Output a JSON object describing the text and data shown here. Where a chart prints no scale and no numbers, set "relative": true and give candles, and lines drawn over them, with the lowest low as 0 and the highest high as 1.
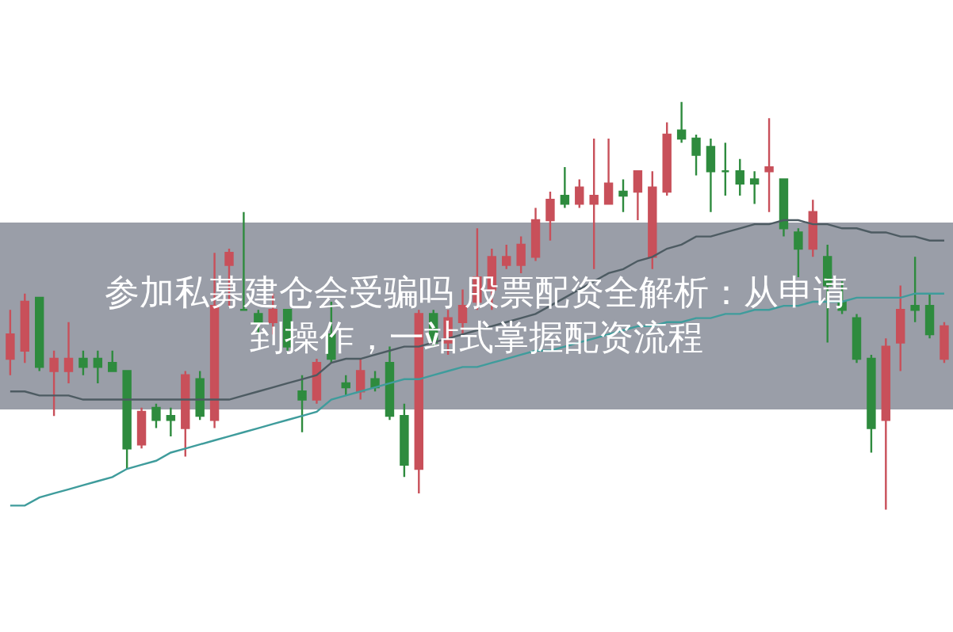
{
  "chart_data": {
    "type": "candlestick",
    "relative": true,
    "title": "参加私募建仓会受骗吗 股票配资全解析：从申请到操作，一站式掌握配资流程",
    "categories": [
      null,
      null,
      null,
      null,
      null,
      null,
      null,
      null,
      null,
      null,
      null,
      null,
      null,
      null,
      null,
      null,
      null,
      null,
      null,
      null,
      null,
      null,
      null,
      null,
      null,
      null,
      null,
      null,
      null,
      null,
      null,
      null,
      null,
      null,
      null,
      null,
      null,
      null,
      null,
      null,
      null,
      null,
      null,
      null,
      null,
      null,
      null,
      null,
      null,
      null,
      null,
      null,
      null,
      null,
      null,
      null,
      null,
      null,
      null,
      null,
      null,
      null,
      null,
      null,
      null
    ],
    "ohlc": [
      [
        0.37,
        0.49,
        0.33,
        0.43
      ],
      [
        0.39,
        0.53,
        0.36,
        0.51
      ],
      [
        0.52,
        0.52,
        0.34,
        0.35
      ],
      [
        0.34,
        0.39,
        0.23,
        0.37
      ],
      [
        0.34,
        0.46,
        0.31,
        0.37
      ],
      [
        0.37,
        0.39,
        0.33,
        0.35
      ],
      [
        0.37,
        0.39,
        0.31,
        0.35
      ],
      [
        0.36,
        0.39,
        0.34,
        0.34
      ],
      [
        0.34,
        0.34,
        0.1,
        0.15
      ],
      [
        0.16,
        0.25,
        0.15,
        0.24
      ],
      [
        0.25,
        0.26,
        0.2,
        0.22
      ],
      [
        0.23,
        0.25,
        0.18,
        0.22
      ],
      [
        0.2,
        0.34,
        0.13,
        0.33
      ],
      [
        0.32,
        0.34,
        0.22,
        0.23
      ],
      [
        0.22,
        0.63,
        0.2,
        0.5
      ],
      [
        0.6,
        0.64,
        0.5,
        0.63
      ],
      [
        0.49,
        0.73,
        0.49,
        0.49
      ],
      [
        0.48,
        0.49,
        0.43,
        0.46
      ],
      [
        0.46,
        0.53,
        0.43,
        0.49
      ],
      [
        0.49,
        0.49,
        0.39,
        0.4
      ],
      [
        0.29,
        0.33,
        0.19,
        0.27
      ],
      [
        0.27,
        0.37,
        0.26,
        0.36
      ],
      [
        0.43,
        0.51,
        0.36,
        0.37
      ],
      [
        0.31,
        0.33,
        0.28,
        0.3
      ],
      [
        0.29,
        0.37,
        0.27,
        0.34
      ],
      [
        0.32,
        0.34,
        0.29,
        0.3
      ],
      [
        0.36,
        0.4,
        0.22,
        0.23
      ],
      [
        0.23,
        0.26,
        0.08,
        0.11
      ],
      [
        0.1,
        0.49,
        0.04,
        0.48
      ],
      [
        0.48,
        0.49,
        0.4,
        0.41
      ],
      [
        0.41,
        0.49,
        0.38,
        0.47
      ],
      [
        0.46,
        0.54,
        0.43,
        0.5
      ],
      [
        0.51,
        0.69,
        0.49,
        0.57
      ],
      [
        0.54,
        0.64,
        0.49,
        0.62
      ],
      [
        0.6,
        0.65,
        0.59,
        0.62
      ],
      [
        0.6,
        0.67,
        0.58,
        0.65
      ],
      [
        0.62,
        0.74,
        0.61,
        0.71
      ],
      [
        0.71,
        0.78,
        0.66,
        0.76
      ],
      [
        0.77,
        0.84,
        0.74,
        0.75
      ],
      [
        0.75,
        0.81,
        0.74,
        0.79
      ],
      [
        0.75,
        0.91,
        0.59,
        0.77
      ],
      [
        0.75,
        0.91,
        0.75,
        0.8
      ],
      [
        0.78,
        0.81,
        0.73,
        0.77
      ],
      [
        0.78,
        0.83,
        0.71,
        0.83
      ],
      [
        0.62,
        0.83,
        0.59,
        0.79
      ],
      [
        0.78,
        0.95,
        0.77,
        0.92
      ],
      [
        0.93,
        1,
        0.9,
        0.91
      ],
      [
        0.91,
        0.92,
        0.82,
        0.87
      ],
      [
        0.89,
        0.91,
        0.73,
        0.83
      ],
      [
        0.83,
        0.9,
        0.77,
        0.83
      ],
      [
        0.83,
        0.86,
        0.77,
        0.8
      ],
      [
        0.81,
        0.83,
        0.75,
        0.8
      ],
      [
        0.83,
        0.96,
        0.73,
        0.84
      ],
      [
        0.81,
        0.81,
        0.67,
        0.69
      ],
      [
        0.68,
        0.69,
        0.57,
        0.64
      ],
      [
        0.64,
        0.76,
        0.62,
        0.73
      ],
      [
        0.62,
        0.65,
        0.41,
        0.55
      ],
      [
        0.51,
        0.56,
        0.48,
        0.49
      ],
      [
        0.47,
        0.48,
        0.36,
        0.37
      ],
      [
        0.37,
        0.38,
        0.14,
        0.2
      ],
      [
        0.22,
        0.42,
        0,
        0.4
      ],
      [
        0.41,
        0.55,
        0.34,
        0.49
      ],
      [
        0.5,
        0.62,
        0.46,
        0.49
      ],
      [
        0.5,
        0.53,
        0.42,
        0.43
      ],
      [
        0.37,
        0.46,
        0.36,
        0.45
      ]
    ],
    "series": [
      {
        "type": "line",
        "color": "#3f9c9c",
        "values": [
          0.01,
          0.01,
          0.03,
          0.04,
          0.05,
          0.06,
          0.07,
          0.08,
          0.1,
          0.11,
          0.12,
          0.14,
          0.15,
          0.16,
          0.17,
          0.18,
          0.19,
          0.2,
          0.21,
          0.22,
          0.23,
          0.24,
          0.27,
          0.28,
          0.29,
          0.3,
          0.31,
          0.32,
          0.32,
          0.33,
          0.34,
          0.35,
          0.35,
          0.36,
          0.37,
          0.38,
          0.39,
          0.39,
          0.4,
          0.41,
          0.42,
          0.43,
          0.44,
          0.45,
          0.45,
          0.46,
          0.46,
          0.47,
          0.47,
          0.48,
          0.48,
          0.49,
          0.49,
          0.5,
          0.5,
          0.51,
          0.51,
          0.51,
          0.52,
          0.52,
          0.52,
          0.52,
          0.53,
          0.53,
          0.53
        ]
      },
      {
        "type": "line",
        "color": "#4d5b62",
        "values": [
          0.29,
          0.29,
          0.28,
          0.28,
          0.28,
          0.27,
          0.27,
          0.27,
          0.27,
          0.27,
          0.27,
          0.27,
          0.27,
          0.27,
          0.27,
          0.27,
          0.28,
          0.29,
          0.3,
          0.31,
          0.32,
          0.33,
          0.36,
          0.37,
          0.37,
          0.38,
          0.39,
          0.4,
          0.4,
          0.41,
          0.42,
          0.43,
          0.44,
          0.45,
          0.46,
          0.47,
          0.48,
          0.5,
          0.52,
          0.54,
          0.56,
          0.58,
          0.59,
          0.61,
          0.62,
          0.64,
          0.65,
          0.67,
          0.67,
          0.68,
          0.69,
          0.7,
          0.7,
          0.71,
          0.71,
          0.7,
          0.7,
          0.69,
          0.69,
          0.68,
          0.68,
          0.67,
          0.67,
          0.66,
          0.66
        ]
      }
    ]
  }
}
